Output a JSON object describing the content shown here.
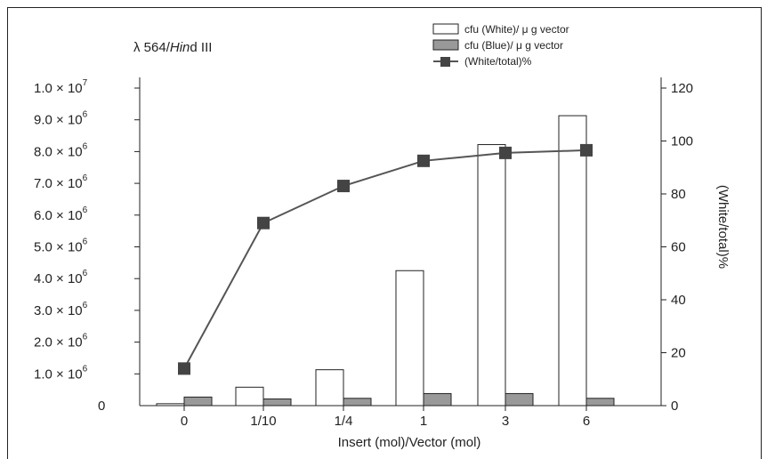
{
  "chart_data": {
    "type": "bar",
    "title": "λ 564/Hind III",
    "title_parts": {
      "prefix": "λ 564/",
      "italic": "Hin",
      "suffix": "d  III"
    },
    "xlabel": "Insert (mol)/Vector (mol)",
    "ylabel": "",
    "y2label": "(White/total)%",
    "categories": [
      "0",
      "1/10",
      "1/4",
      "1",
      "3",
      "6"
    ],
    "ylim": [
      0,
      10000000
    ],
    "y2lim": [
      0,
      120
    ],
    "left_ticks": [
      {
        "value": 0,
        "mantissa": "0",
        "exp": ""
      },
      {
        "value": 1000000,
        "mantissa": "1.0  × 10",
        "exp": "6"
      },
      {
        "value": 2000000,
        "mantissa": "2.0  × 10",
        "exp": "6"
      },
      {
        "value": 3000000,
        "mantissa": "3.0  × 10",
        "exp": "6"
      },
      {
        "value": 4000000,
        "mantissa": "4.0  × 10",
        "exp": "6"
      },
      {
        "value": 5000000,
        "mantissa": "5.0  × 10",
        "exp": "6"
      },
      {
        "value": 6000000,
        "mantissa": "6.0  × 10",
        "exp": "6"
      },
      {
        "value": 7000000,
        "mantissa": "7.0  × 10",
        "exp": "6"
      },
      {
        "value": 8000000,
        "mantissa": "8.0  × 10",
        "exp": "6"
      },
      {
        "value": 9000000,
        "mantissa": "9.0  × 10",
        "exp": "6"
      },
      {
        "value": 10000000,
        "mantissa": "1.0  × 10",
        "exp": "7"
      }
    ],
    "right_ticks": [
      0,
      20,
      40,
      60,
      80,
      100,
      120
    ],
    "series": [
      {
        "name": "cfu (White)/ μ g  vector",
        "type": "bar",
        "axis": "left",
        "fill": "#ffffff",
        "values": [
          60000,
          580000,
          1130000,
          4250000,
          8220000,
          9130000
        ]
      },
      {
        "name": "cfu (Blue)/ μ g  vector",
        "type": "bar",
        "axis": "left",
        "fill": "#999999",
        "values": [
          270000,
          210000,
          230000,
          380000,
          380000,
          230000
        ]
      },
      {
        "name": "(White/total)%",
        "type": "line",
        "axis": "right",
        "color": "#555555",
        "values": [
          14,
          69,
          83,
          92.5,
          95.5,
          96.5
        ]
      }
    ],
    "legend_position": "top-right",
    "grid": false
  }
}
